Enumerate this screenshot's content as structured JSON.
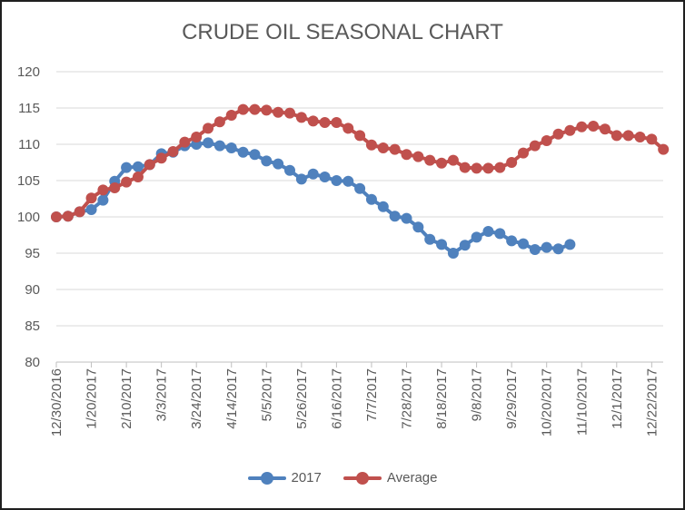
{
  "chart_data": {
    "type": "line",
    "title": "CRUDE OIL SEASONAL CHART",
    "xlabel": "",
    "ylabel": "",
    "ylim": [
      80,
      120
    ],
    "yticks": [
      "80",
      "85",
      "90",
      "95",
      "100",
      "105",
      "110",
      "115",
      "120"
    ],
    "xtick_labels": [
      "12/30/2016",
      "1/20/2017",
      "2/10/2017",
      "3/3/2017",
      "3/24/2017",
      "4/14/2017",
      "5/5/2017",
      "5/26/2017",
      "6/16/2017",
      "7/7/2017",
      "7/28/2017",
      "8/18/2017",
      "9/8/2017",
      "9/29/2017",
      "10/20/2017",
      "11/10/2017",
      "12/1/2017",
      "12/22/2017"
    ],
    "x_start": "12/30/2016",
    "x_step_days": 7,
    "grid": "horizontal",
    "legend_position": "bottom",
    "series": [
      {
        "name": "2017",
        "color": "#4f81bd",
        "values": [
          100.0,
          100.1,
          100.7,
          101.0,
          102.3,
          104.9,
          106.8,
          106.9,
          107.2,
          108.7,
          108.9,
          109.8,
          110.0,
          110.2,
          109.8,
          109.5,
          108.9,
          108.6,
          107.7,
          107.3,
          106.4,
          105.2,
          105.9,
          105.5,
          105.0,
          104.9,
          103.9,
          102.4,
          101.4,
          100.1,
          99.8,
          98.6,
          96.9,
          96.2,
          95.0,
          96.1,
          97.2,
          98.0,
          97.7,
          96.7,
          96.3,
          95.5,
          95.8,
          95.6,
          96.2
        ]
      },
      {
        "name": "Average",
        "color": "#c0504d",
        "values": [
          100.0,
          100.1,
          100.7,
          102.6,
          103.7,
          104.0,
          104.8,
          105.5,
          107.2,
          108.1,
          109.0,
          110.3,
          111.0,
          112.2,
          113.1,
          114.0,
          114.8,
          114.8,
          114.7,
          114.4,
          114.3,
          113.7,
          113.2,
          113.0,
          113.0,
          112.2,
          111.2,
          109.9,
          109.5,
          109.3,
          108.6,
          108.3,
          107.8,
          107.4,
          107.8,
          106.8,
          106.7,
          106.7,
          106.8,
          107.5,
          108.8,
          109.8,
          110.5,
          111.4,
          111.9,
          112.4,
          112.5,
          112.1,
          111.2,
          111.2,
          111.0,
          110.7,
          109.3
        ]
      }
    ]
  }
}
